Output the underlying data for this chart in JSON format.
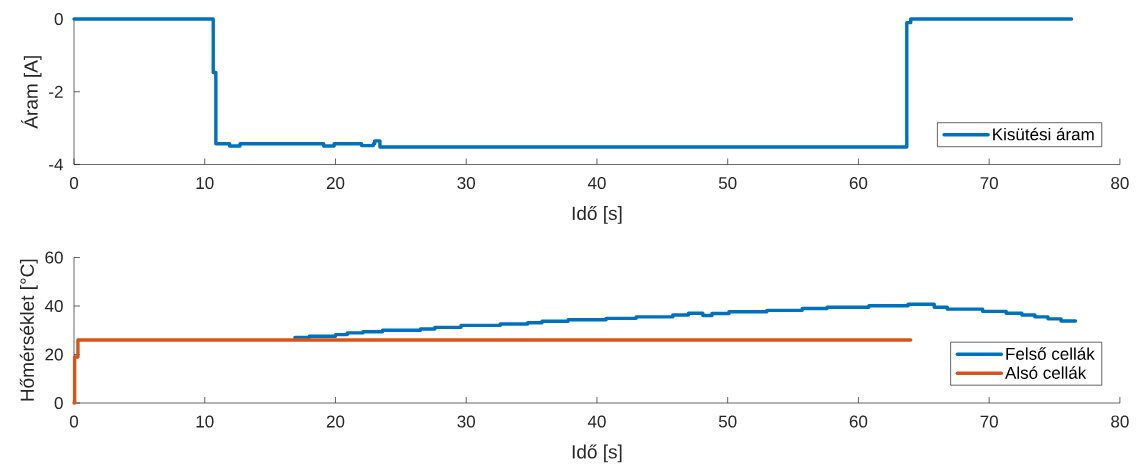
{
  "chart_data": [
    {
      "type": "step",
      "xlabel": "Idő [s]",
      "ylabel": "Áram [A]",
      "xlim": [
        0,
        80
      ],
      "ylim": [
        -4,
        0
      ],
      "xticks": [
        0,
        10,
        20,
        30,
        40,
        50,
        60,
        70,
        80
      ],
      "yticks": [
        -4,
        -2,
        0
      ],
      "legend": "bottom right",
      "series": [
        {
          "name": "Kisütési áram",
          "color": "#0072bd",
          "x": [
            0,
            10.65,
            10.85,
            11.9,
            12.7,
            19.1,
            19.9,
            22.0,
            22.9,
            23.0,
            23.4,
            63.7,
            64.0,
            76.3
          ],
          "values": [
            0,
            -1.47,
            -3.43,
            -3.49,
            -3.43,
            -3.49,
            -3.43,
            -3.48,
            -3.43,
            -3.35,
            -3.52,
            -0.1,
            0,
            0
          ]
        }
      ]
    },
    {
      "type": "step",
      "xlabel": "Idő [s]",
      "ylabel": "Hőmérséklet [°C]",
      "xlim": [
        0,
        80
      ],
      "ylim": [
        0,
        60
      ],
      "xticks": [
        0,
        10,
        20,
        30,
        40,
        50,
        60,
        70,
        80
      ],
      "yticks": [
        0,
        20,
        40,
        60
      ],
      "legend": "bottom right",
      "series": [
        {
          "name": "Felső cellák",
          "color": "#0072bd",
          "x": [
            16.9,
            18.0,
            20.0,
            20.9,
            22.1,
            23.6,
            26.5,
            27.6,
            29.6,
            32.6,
            34.7,
            35.8,
            37.8,
            40.7,
            43.0,
            45.8,
            47.0,
            48.1,
            48.8,
            50.1,
            53.0,
            55.7,
            57.6,
            60.8,
            63.8,
            65.8,
            66.8,
            69.5,
            71.3,
            72.5,
            73.5,
            74.5,
            75.5,
            76.6
          ],
          "values": [
            27.0,
            27.5,
            28.2,
            28.9,
            29.4,
            30.0,
            30.5,
            31.2,
            32.0,
            32.6,
            33.1,
            33.7,
            34.3,
            34.9,
            35.5,
            36.3,
            37.0,
            36.1,
            36.9,
            37.6,
            38.2,
            39.0,
            39.5,
            40.1,
            40.7,
            39.5,
            38.7,
            37.8,
            37.0,
            36.3,
            35.5,
            34.7,
            33.8,
            33.8
          ]
        },
        {
          "name": "Alsó cellák",
          "color": "#d95319",
          "x": [
            0,
            0.05,
            0.3,
            64.0
          ],
          "values": [
            0,
            19,
            26,
            26
          ]
        }
      ]
    }
  ]
}
